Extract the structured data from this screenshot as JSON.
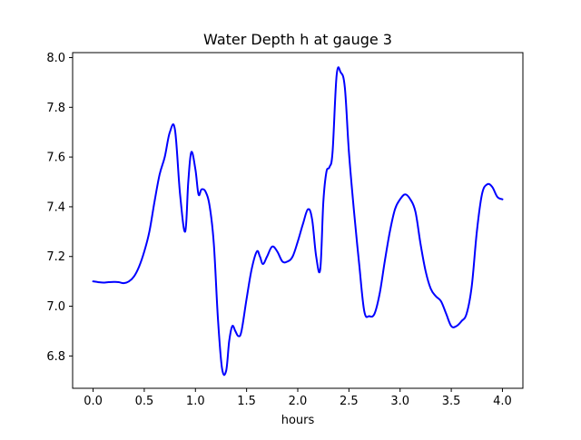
{
  "chart_data": {
    "type": "line",
    "title": "Water Depth h at gauge 3",
    "xlabel": "hours",
    "ylabel": "",
    "xlim": [
      -0.2,
      4.2
    ],
    "ylim": [
      6.67,
      8.02
    ],
    "xticks": [
      "0.0",
      "0.5",
      "1.0",
      "1.5",
      "2.0",
      "2.5",
      "3.0",
      "3.5",
      "4.0"
    ],
    "yticks": [
      "6.8",
      "7.0",
      "7.2",
      "7.4",
      "7.6",
      "7.8",
      "8.0"
    ],
    "grid": false,
    "legend": "none",
    "series": [
      {
        "color": "#0000ff",
        "x": [
          0.0,
          0.05,
          0.1,
          0.15,
          0.2,
          0.25,
          0.3,
          0.35,
          0.4,
          0.45,
          0.5,
          0.55,
          0.6,
          0.65,
          0.7,
          0.75,
          0.8,
          0.85,
          0.9,
          0.93,
          0.96,
          1.0,
          1.03,
          1.06,
          1.1,
          1.14,
          1.18,
          1.22,
          1.26,
          1.3,
          1.33,
          1.36,
          1.39,
          1.42,
          1.45,
          1.5,
          1.55,
          1.6,
          1.63,
          1.66,
          1.7,
          1.75,
          1.8,
          1.85,
          1.9,
          1.95,
          2.0,
          2.05,
          2.1,
          2.14,
          2.18,
          2.22,
          2.25,
          2.28,
          2.31,
          2.34,
          2.38,
          2.42,
          2.46,
          2.5,
          2.55,
          2.6,
          2.65,
          2.7,
          2.75,
          2.8,
          2.85,
          2.9,
          2.95,
          3.0,
          3.05,
          3.1,
          3.15,
          3.2,
          3.25,
          3.3,
          3.35,
          3.4,
          3.45,
          3.5,
          3.55,
          3.6,
          3.65,
          3.7,
          3.75,
          3.8,
          3.85,
          3.9,
          3.95,
          4.0
        ],
        "y": [
          7.1,
          7.097,
          7.095,
          7.097,
          7.098,
          7.097,
          7.093,
          7.1,
          7.12,
          7.16,
          7.22,
          7.3,
          7.42,
          7.53,
          7.6,
          7.7,
          7.71,
          7.45,
          7.3,
          7.5,
          7.62,
          7.55,
          7.45,
          7.47,
          7.46,
          7.4,
          7.25,
          6.95,
          6.75,
          6.74,
          6.86,
          6.92,
          6.9,
          6.88,
          6.9,
          7.03,
          7.15,
          7.22,
          7.2,
          7.17,
          7.2,
          7.24,
          7.22,
          7.18,
          7.18,
          7.2,
          7.26,
          7.33,
          7.39,
          7.35,
          7.2,
          7.15,
          7.42,
          7.54,
          7.56,
          7.62,
          7.93,
          7.94,
          7.88,
          7.62,
          7.38,
          7.17,
          6.98,
          6.96,
          6.97,
          7.05,
          7.18,
          7.3,
          7.39,
          7.43,
          7.45,
          7.43,
          7.38,
          7.25,
          7.14,
          7.07,
          7.04,
          7.02,
          6.97,
          6.92,
          6.92,
          6.94,
          6.97,
          7.08,
          7.3,
          7.45,
          7.49,
          7.48,
          7.44,
          7.43
        ]
      }
    ]
  }
}
